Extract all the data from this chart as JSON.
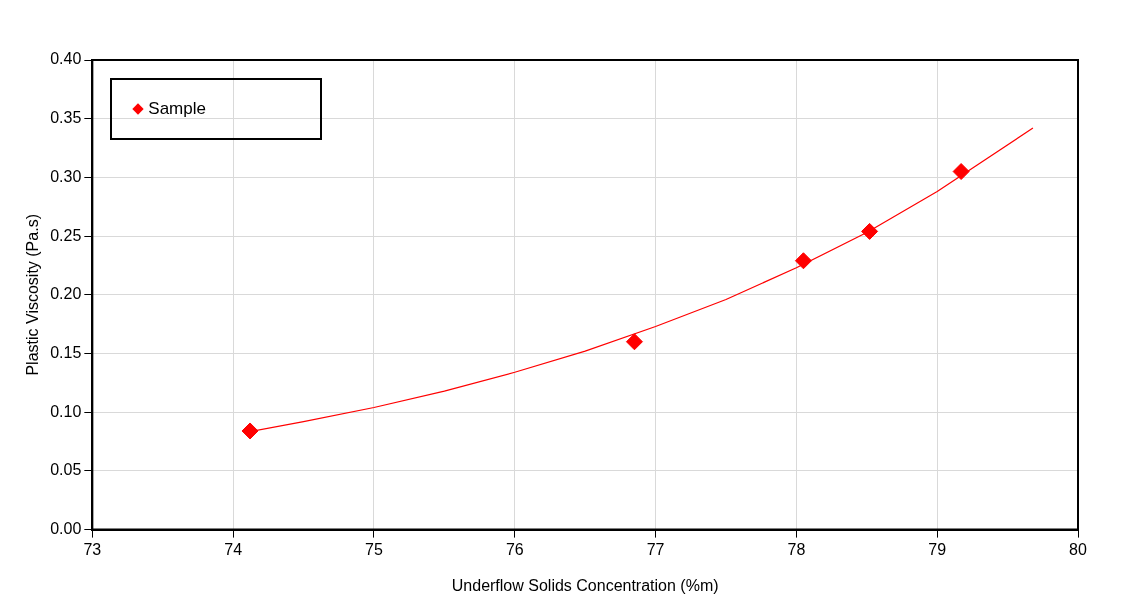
{
  "chart_data": {
    "type": "scatter",
    "xlabel": "Underflow Solids Concentration (%m)",
    "ylabel": "Plastic Viscosity (Pa.s)",
    "series": [
      {
        "name": "Sample",
        "color": "#ff0000",
        "x": [
          74.12,
          76.85,
          78.05,
          78.52,
          79.17
        ],
        "values": [
          0.084,
          0.16,
          0.229,
          0.254,
          0.305
        ]
      },
      {
        "type": "line",
        "color": "#ff0000",
        "marker": "none",
        "x": [
          74.1,
          74.5,
          75,
          75.5,
          76,
          76.5,
          77,
          77.5,
          78,
          78.5,
          79,
          79.68
        ],
        "values": [
          0.083,
          0.092,
          0.104,
          0.118,
          0.134,
          0.152,
          0.173,
          0.196,
          0.223,
          0.253,
          0.288,
          0.342
        ]
      }
    ],
    "marker": "diamond",
    "legend": "top left",
    "grid": true,
    "xlim": [
      73,
      80
    ],
    "xticks": [
      73,
      74,
      75,
      76,
      77,
      78,
      79,
      80
    ],
    "ylim": [
      0,
      0.4
    ],
    "yticks": [
      {
        "value": 0,
        "label": "0.00"
      },
      {
        "value": 0.05,
        "label": "0.05"
      },
      {
        "value": 0.1,
        "label": "0.10"
      },
      {
        "value": 0.15,
        "label": "0.15"
      },
      {
        "value": 0.2,
        "label": "0.20"
      },
      {
        "value": 0.25,
        "label": "0.25"
      },
      {
        "value": 0.3,
        "label": "0.30"
      },
      {
        "value": 0.35,
        "label": "0.35"
      },
      {
        "value": 0.4,
        "label": "0.40"
      }
    ]
  }
}
